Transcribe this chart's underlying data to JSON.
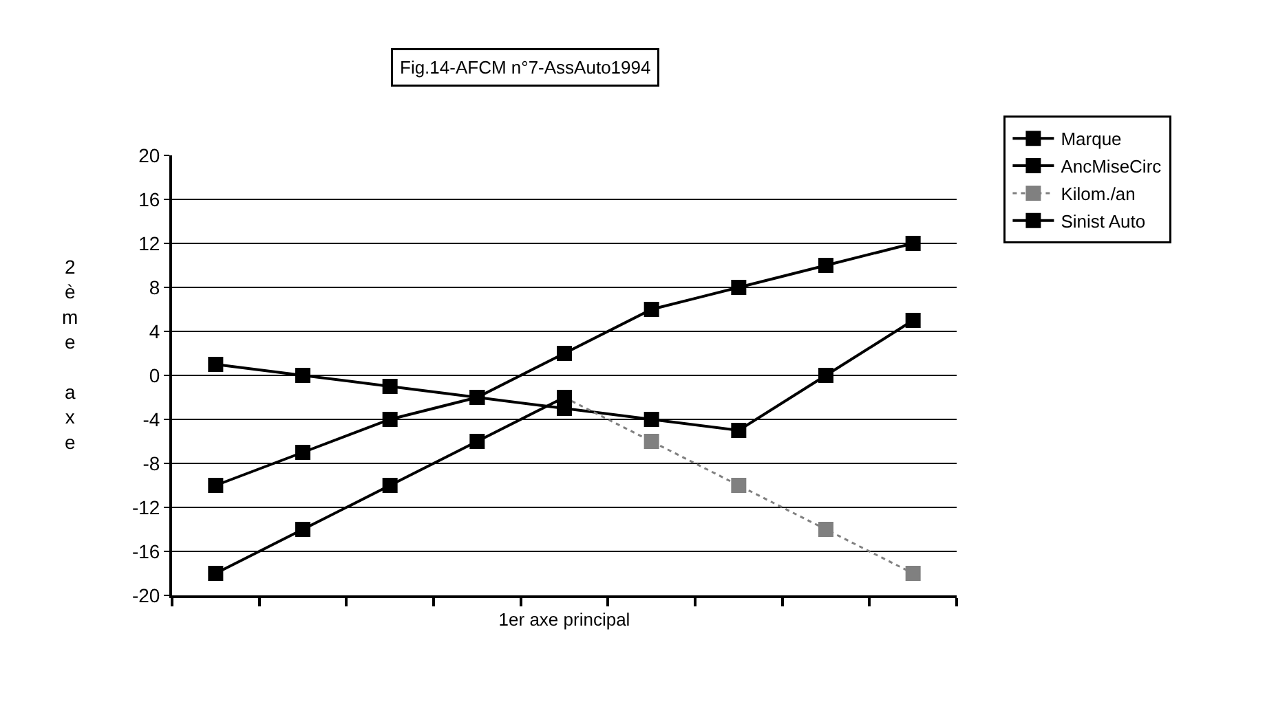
{
  "chart_data": {
    "type": "line",
    "title": "Fig.14-AFCM n°7-AssAuto1994",
    "xlabel": "1er axe principal",
    "ylabel": "2ème axe",
    "categories": [
      null,
      null,
      null,
      null,
      null,
      null,
      null,
      null,
      null
    ],
    "series": [
      {
        "name": "Marque",
        "color": "#000000",
        "values": [
          1,
          0,
          -1,
          -2,
          -3,
          -4,
          -5,
          0,
          5
        ]
      },
      {
        "name": "AncMiseCirc",
        "color": "#000000",
        "values": [
          -10,
          -7,
          -4,
          -2,
          2,
          6,
          8,
          10,
          12
        ]
      },
      {
        "name": "Kilom./an",
        "color": "#808080",
        "line_style": "dotted",
        "values": [
          null,
          null,
          null,
          null,
          -2,
          -6,
          -10,
          -14,
          -18
        ]
      },
      {
        "name": "Sinist Auto",
        "color": "#000000",
        "values": [
          -18,
          -14,
          -10,
          -6,
          -2,
          null,
          null,
          null,
          null
        ]
      }
    ],
    "ylim": [
      -20,
      20
    ],
    "yticks": [
      -20,
      -16,
      -12,
      -8,
      -4,
      0,
      4,
      8,
      12,
      16,
      20
    ],
    "grid": "y",
    "legend": "right",
    "marker": "square",
    "line_style": "solid",
    "tick_labels": "y"
  }
}
